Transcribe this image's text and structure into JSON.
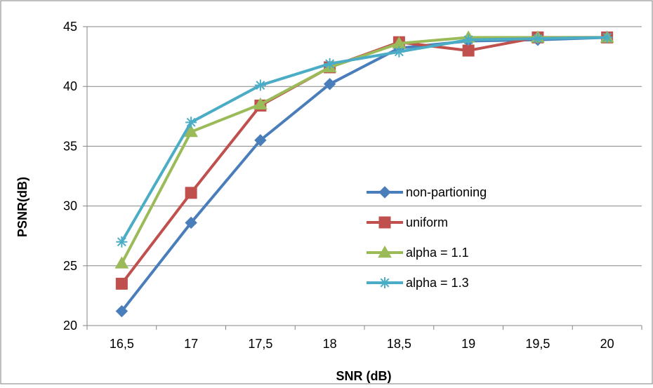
{
  "chart_data": {
    "type": "line",
    "title": "",
    "xlabel": "SNR (dB)",
    "ylabel": "PSNR(dB)",
    "categories": [
      "16,5",
      "17",
      "17,5",
      "18",
      "18,5",
      "19",
      "19,5",
      "20"
    ],
    "x": [
      16.5,
      17,
      17.5,
      18,
      18.5,
      19,
      19.5,
      20
    ],
    "ylim": [
      20,
      45
    ],
    "yticks": [
      20,
      25,
      30,
      35,
      40,
      45
    ],
    "grid": "horizontal",
    "legend_position": "right, inside plot",
    "series": [
      {
        "name": "non-partioning",
        "color": "#4a7ebb",
        "marker": "diamond",
        "values": [
          21.2,
          28.6,
          35.5,
          40.2,
          43.2,
          43.8,
          43.9,
          44.1
        ]
      },
      {
        "name": "uniform",
        "color": "#c0504d",
        "marker": "square",
        "values": [
          23.5,
          31.1,
          38.4,
          41.6,
          43.7,
          43.0,
          44.1,
          44.1
        ]
      },
      {
        "name": "alpha = 1.1",
        "color": "#9bbb59",
        "marker": "triangle",
        "values": [
          25.2,
          36.2,
          38.5,
          41.6,
          43.6,
          44.1,
          44.1,
          44.1
        ]
      },
      {
        "name": "alpha = 1.3",
        "color": "#4bacc6",
        "marker": "star",
        "values": [
          27.0,
          37.0,
          40.1,
          41.9,
          42.9,
          43.9,
          44.0,
          44.1
        ]
      }
    ]
  }
}
